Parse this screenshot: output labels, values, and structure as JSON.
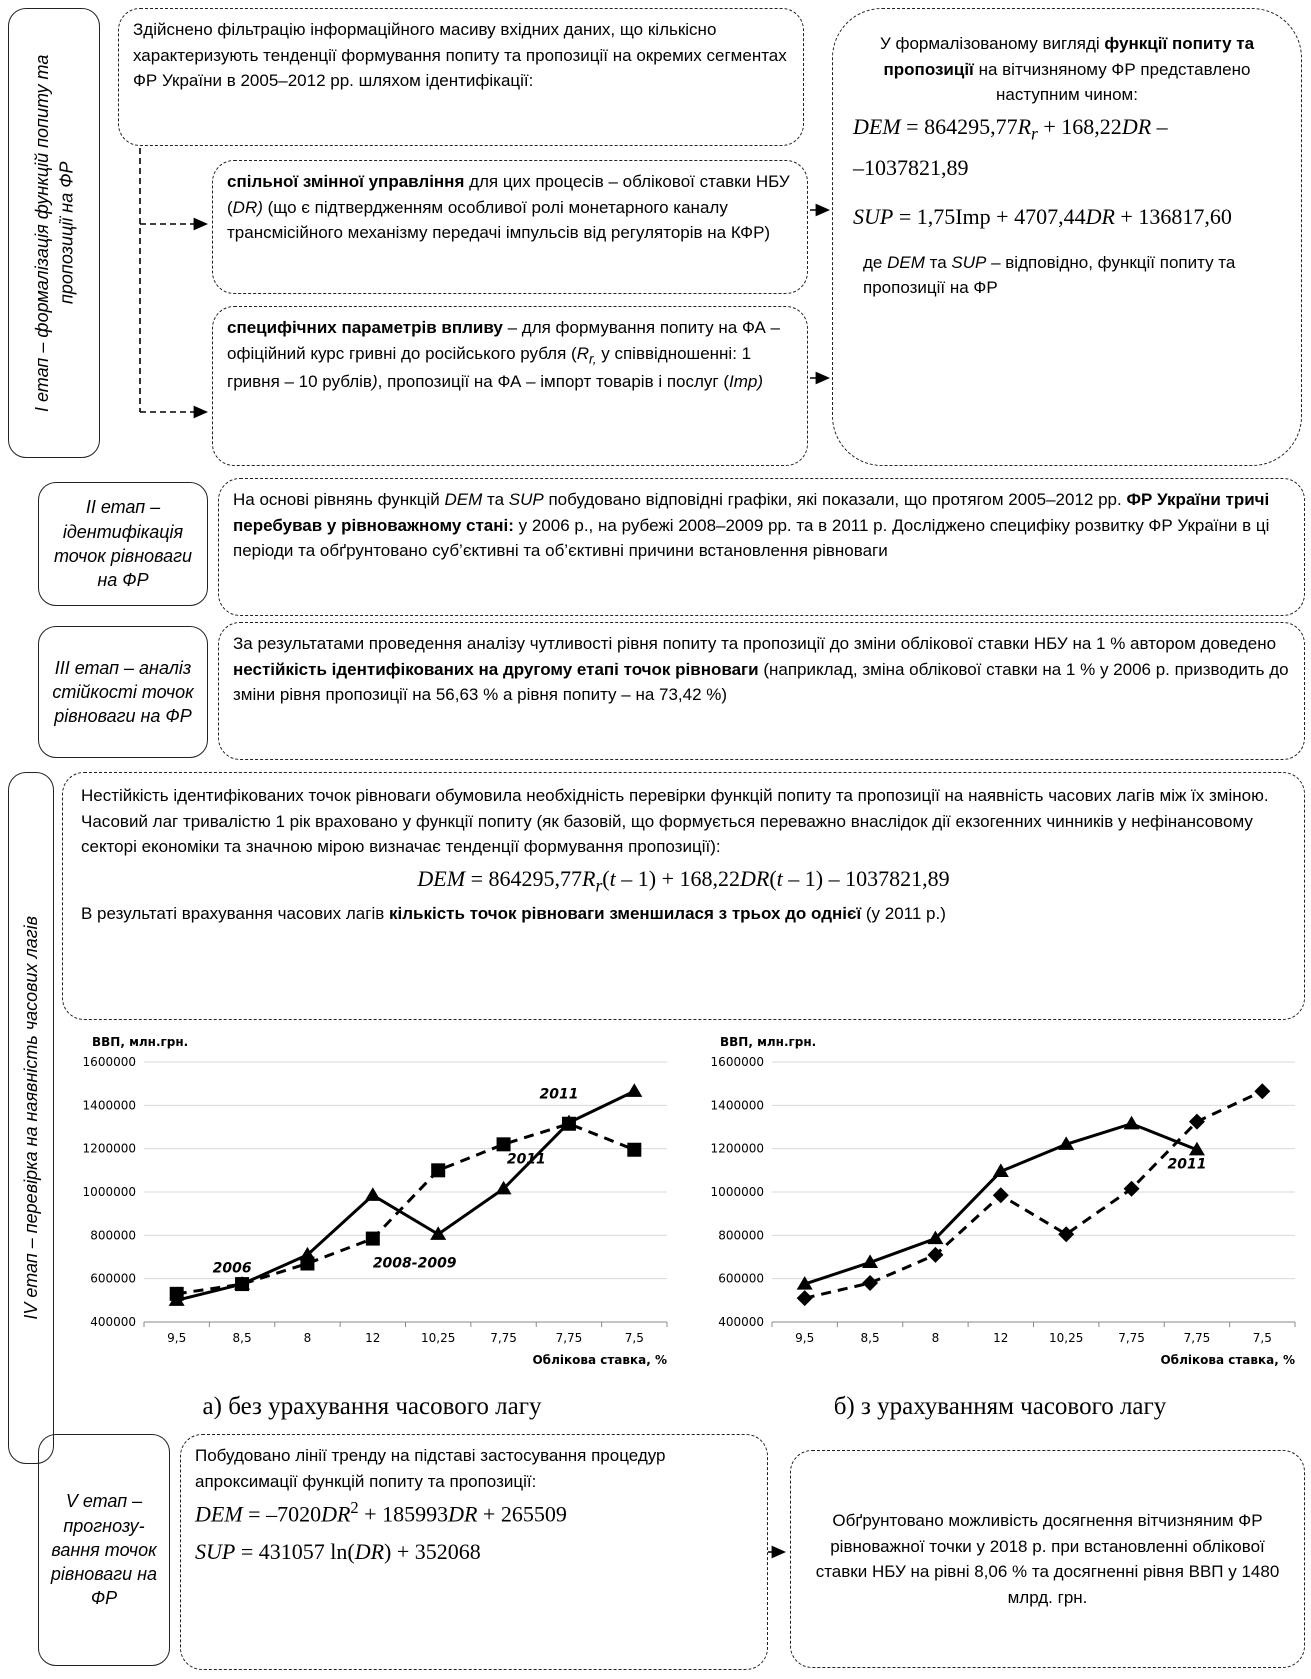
{
  "stage1": {
    "label": "I етап – формалізація функцій попиту та пропозиції на ФР",
    "filter": {
      "runs": [
        "Здійснено фільтрацію інформаційного масиву вхідних даних, що кількісно характеризують тенденції формування попиту та пропозиції на окремих сегментах ФР України в 2005–2012 рр. шляхом ідентифікації:"
      ]
    },
    "common": {
      "runs": [
        {
          "t": "спільної змінної управління",
          "s": "b"
        },
        " для цих процесів – облікової ставки НБУ (",
        {
          "t": "DR)",
          "s": "i"
        },
        " (що є підтвердженням особливої ролі монетарного каналу трансмісійного механізму передачі імпульсів від регуляторів на КФР)"
      ]
    },
    "specific": {
      "runs": [
        {
          "t": "специфічних параметрів впливу",
          "s": "b"
        },
        " – для формування попиту на ФА – офіційний курс гривні до російського рубля (",
        {
          "t": "R",
          "s": "i"
        },
        {
          "t": "r,",
          "s": "isub"
        },
        " у співвідношенні: 1 гривня – 10 рублів",
        {
          "t": ")",
          "s": "i"
        },
        ", пропозиції на ФА – імпорт товарів і послуг (",
        {
          "t": "Imp)",
          "s": "i"
        }
      ]
    },
    "result": {
      "intro": {
        "runs": [
          "У формалізованому вигляді ",
          {
            "t": "функції попиту та пропозиції",
            "s": "b"
          },
          " на вітчизняному ФР представлено наступним чином:"
        ]
      },
      "eq1": {
        "runs": [
          {
            "t": "DEM",
            "s": "i"
          },
          " = 864295,77",
          {
            "t": "R",
            "s": "i"
          },
          {
            "t": "r",
            "s": "isub"
          },
          " + 168,22",
          {
            "t": "DR",
            "s": "i"
          },
          " –"
        ]
      },
      "eq1b": {
        "runs": [
          "–1037821,89"
        ]
      },
      "eq2": {
        "runs": [
          {
            "t": "SUP",
            "s": "i"
          },
          " = 1,75Imp + 4707,44",
          {
            "t": "DR",
            "s": "i"
          },
          " + 136817,60"
        ]
      },
      "note": {
        "runs": [
          "де ",
          {
            "t": "DEM",
            "s": "i"
          },
          " та ",
          {
            "t": "SUP",
            "s": "i"
          },
          " – відповідно, функції попиту та пропозиції на ФР"
        ]
      }
    }
  },
  "stage2": {
    "label": "II етап – ідентифікація точок рівноваги на ФР",
    "text": {
      "runs": [
        "На основі рівнянь функцій ",
        {
          "t": "DEM",
          "s": "i"
        },
        " та ",
        {
          "t": "SUP",
          "s": "i"
        },
        " побудовано відповідні графіки, які показали, що протягом 2005–2012 рр. ",
        {
          "t": "ФР України тричі перебував у рівноважному стані:",
          "s": "b"
        },
        " у 2006 р., на рубежі 2008–2009 рр. та в 2011 р. Досліджено специфіку розвитку ФР України в ці періоди та обґрунтовано суб’єктивні та об’єктивні причини встановлення рівноваги"
      ]
    }
  },
  "stage3": {
    "label": "III етап – аналіз стійкості точок рівноваги на ФР",
    "text": {
      "runs": [
        "За результатами проведення аналізу чутливості рівня попиту та пропозиції до зміни облікової ставки НБУ на 1 % автором доведено ",
        {
          "t": "нестійкість ідентифікованих на другому етапі точок рівноваги",
          "s": "b"
        },
        " (наприклад, зміна облікової ставки на 1 % у 2006 р. призводить до зміни рівня пропозиції на 56,63 % а рівня попиту – на 73,42 %)"
      ]
    }
  },
  "stage4": {
    "label": "IV етап – перевірка на наявність часових лагів",
    "text": {
      "runs": [
        "Нестійкість ідентифікованих точок рівноваги обумовила необхідність перевірки функцій попиту та пропозиції на наявність часових лагів між їх зміною. Часовий лаг тривалістю 1 рік враховано у функції попиту (як базовій, що формується переважно внаслідок дії екзогенних чинників у нефінансовому секторі економіки та значною мірою визначає тенденції формування пропозиції):"
      ]
    },
    "eq": {
      "runs": [
        {
          "t": "DEM",
          "s": "i"
        },
        " = 864295,77",
        {
          "t": "R",
          "s": "i"
        },
        {
          "t": "r",
          "s": "isub"
        },
        "(",
        {
          "t": "t",
          "s": "i"
        },
        " – 1) + 168,22",
        {
          "t": "DR",
          "s": "i"
        },
        "(",
        {
          "t": "t",
          "s": "i"
        },
        " – 1) – 1037821,89"
      ]
    },
    "result": {
      "runs": [
        "В результаті врахування часових лагів ",
        {
          "t": "кількість точок рівноваги зменшилася з трьох до однієї",
          "s": "b"
        },
        " (у 2011 р.)"
      ]
    }
  },
  "chart_data": [
    {
      "type": "line",
      "caption": "а) без урахування часового лагу",
      "y_label": "ВВП, млн.грн.",
      "x_label": "Облікова ставка, %",
      "categories": [
        "9,5",
        "8,5",
        "8",
        "12",
        "10,25",
        "7,75",
        "7,75",
        "7,5"
      ],
      "ylim": [
        400000,
        1600000
      ],
      "yticks": [
        400000,
        600000,
        800000,
        1000000,
        1200000,
        1400000,
        1600000
      ],
      "grid": true,
      "series": [
        {
          "color": "#000000",
          "line": "solid",
          "marker": "triangle",
          "values": [
            500000,
            575000,
            710000,
            985000,
            805000,
            1015000,
            1320000,
            1465000
          ]
        },
        {
          "color": "#000000",
          "line": "dashed",
          "marker": "square",
          "values": [
            530000,
            575000,
            670000,
            785000,
            1100000,
            1220000,
            1315000,
            1195000
          ]
        }
      ],
      "annotations": [
        "2006",
        "2008-2009",
        "2011",
        "2011"
      ]
    },
    {
      "type": "line",
      "caption": "б) з урахуванням часового лагу",
      "y_label": "ВВП, млн.грн.",
      "x_label": "Облікова ставка, %",
      "categories": [
        "9,5",
        "8,5",
        "8",
        "12",
        "10,25",
        "7,75",
        "7,75",
        "7,5"
      ],
      "ylim": [
        400000,
        1600000
      ],
      "yticks": [
        400000,
        600000,
        800000,
        1000000,
        1200000,
        1400000,
        1600000
      ],
      "grid": true,
      "series": [
        {
          "color": "#000000",
          "line": "solid",
          "marker": "triangle",
          "values": [
            575000,
            675000,
            785000,
            1095000,
            1220000,
            1315000,
            1195000,
            null
          ]
        },
        {
          "color": "#000000",
          "line": "dashed",
          "marker": "diamond",
          "values": [
            510000,
            580000,
            710000,
            985000,
            805000,
            1015000,
            1325000,
            1465000
          ]
        }
      ],
      "annotations": [
        "2011"
      ]
    }
  ],
  "stage5": {
    "label": "V етап – прогнозу-вання точок рівноваги на ФР",
    "text": {
      "runs": [
        "Побудовано лінії тренду на підставі застосування процедур апроксимації функцій попиту та пропозиції:"
      ]
    },
    "eq1": {
      "runs": [
        {
          "t": "DEM",
          "s": "i"
        },
        " = –7020",
        {
          "t": "DR",
          "s": "i"
        },
        {
          "t": "2",
          "s": "sup"
        },
        " + 185993",
        {
          "t": "DR",
          "s": "i"
        },
        " + 265509"
      ]
    },
    "eq2": {
      "runs": [
        {
          "t": "SUP",
          "s": "i"
        },
        " = 431057 ln(",
        {
          "t": "DR",
          "s": "i"
        },
        ") + 352068"
      ]
    },
    "result": {
      "runs": [
        "Обґрунтовано можливість досягнення вітчизняним ФР рівноважної точки у 2018 р. при встановленні облікової ставки НБУ на рівні 8,06 % та досягненні рівня ВВП у 1480 млрд. грн."
      ]
    }
  }
}
